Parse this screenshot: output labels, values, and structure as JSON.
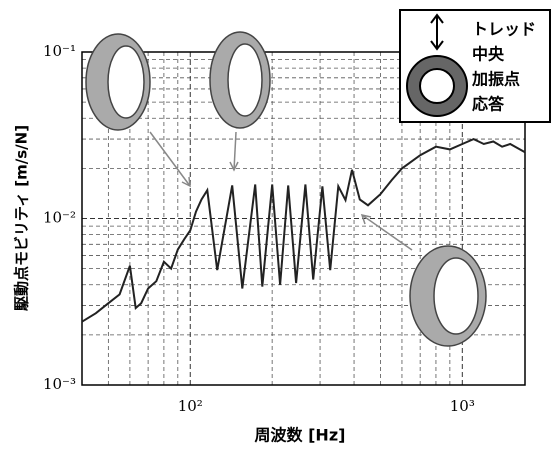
{
  "chart_data": {
    "type": "line",
    "xlabel": "周波数 [Hz]",
    "ylabel": "駆動点モビリティ [m/s/N]",
    "annotations": [
      "トレッド",
      "中央",
      "加振点",
      "応答"
    ],
    "x": [
      40,
      45,
      50,
      55,
      60,
      63,
      66,
      70,
      75,
      80,
      85,
      90,
      95,
      100,
      105,
      110,
      115.5,
      125.6,
      142.6,
      155.3,
      173.3,
      184,
      200,
      214,
      229,
      245,
      265,
      283,
      306,
      327,
      350,
      372,
      393,
      420,
      450,
      500,
      550,
      600,
      700,
      800,
      900,
      1000,
      1100,
      1200,
      1300,
      1400,
      1500,
      1700
    ],
    "values": [
      0.0024,
      0.0027,
      0.0031,
      0.0035,
      0.0052,
      0.0029,
      0.0031,
      0.0038,
      0.0042,
      0.0055,
      0.005,
      0.0065,
      0.0075,
      0.0085,
      0.011,
      0.013,
      0.0148,
      0.0049,
      0.0158,
      0.0038,
      0.016,
      0.0039,
      0.016,
      0.004,
      0.0158,
      0.0041,
      0.016,
      0.0043,
      0.0156,
      0.0049,
      0.0156,
      0.0129,
      0.0196,
      0.013,
      0.012,
      0.014,
      0.017,
      0.02,
      0.024,
      0.027,
      0.026,
      0.028,
      0.03,
      0.028,
      0.029,
      0.027,
      0.028,
      0.025
    ],
    "color": "#222222",
    "xlim": [
      40,
      1700
    ],
    "ylim": [
      0.001,
      0.1
    ],
    "xticks": [
      {
        "value": 100,
        "label": "10²"
      },
      {
        "value": 1000,
        "label": "10³"
      }
    ],
    "yticks": [
      {
        "value": 0.001,
        "label": "10⁻³"
      },
      {
        "value": 0.01,
        "label": "10⁻²"
      },
      {
        "value": 0.1,
        "label": "10⁻¹"
      }
    ],
    "xscale": "log",
    "yscale": "log",
    "grid": "both"
  }
}
